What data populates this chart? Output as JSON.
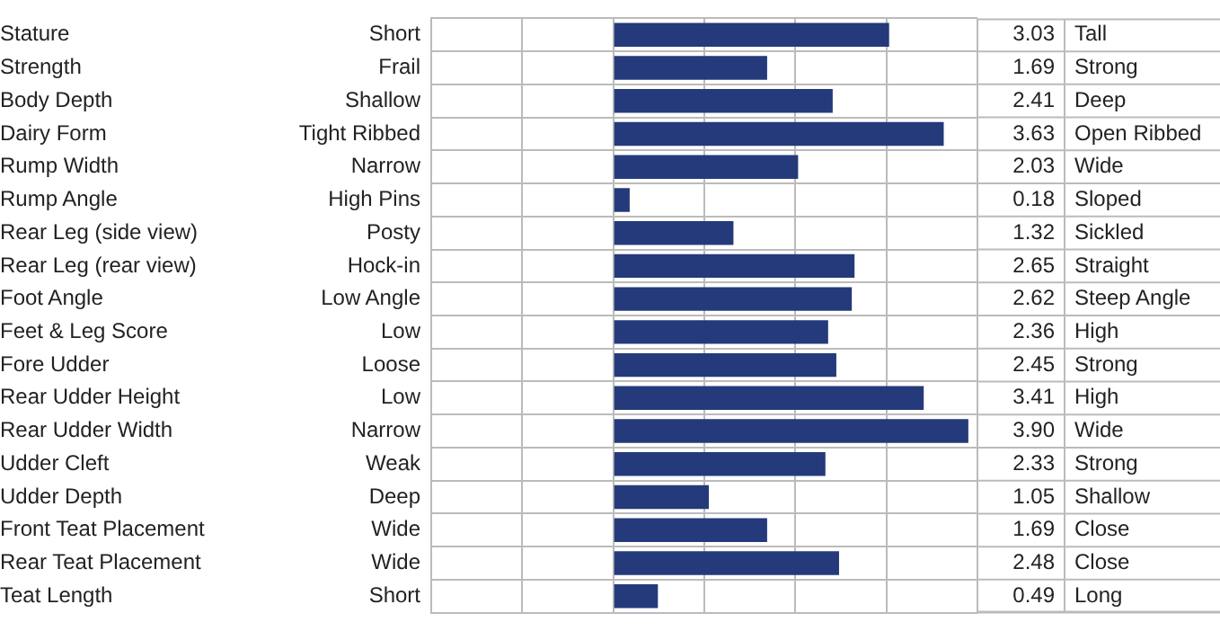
{
  "chart_data": {
    "type": "bar",
    "orientation": "horizontal",
    "color": "#253a7a",
    "grid": true,
    "legend": false,
    "tick_labels": "y",
    "categories": [
      "Stature",
      "Strength",
      "Body Depth",
      "Dairy Form",
      "Rump Width",
      "Rump Angle",
      "Rear Leg (side view)",
      "Rear Leg (rear view)",
      "Foot Angle",
      "Feet & Leg Score",
      "Fore Udder",
      "Rear Udder Height",
      "Rear Udder Width",
      "Udder Cleft",
      "Udder Depth",
      "Front Teat Placement",
      "Rear Teat Placement",
      "Teat Length"
    ],
    "values": [
      3.03,
      1.69,
      2.41,
      3.63,
      2.03,
      0.18,
      1.32,
      2.65,
      2.62,
      2.36,
      2.45,
      3.41,
      3.9,
      2.33,
      1.05,
      1.69,
      2.48,
      0.49
    ],
    "value_labels": [
      "3.03",
      "1.69",
      "2.41",
      "3.63",
      "2.03",
      "0.18",
      "1.32",
      "2.65",
      "2.62",
      "2.36",
      "2.45",
      "3.41",
      "3.90",
      "2.33",
      "1.05",
      "1.69",
      "2.48",
      "0.49"
    ],
    "xlim": [
      -2,
      4
    ],
    "xticks": [
      {
        "value": -2,
        "label": null
      },
      {
        "value": -1,
        "label": null
      },
      {
        "value": 0,
        "label": null
      },
      {
        "value": 1,
        "label": null
      },
      {
        "value": 2,
        "label": null
      },
      {
        "value": 3,
        "label": null
      },
      {
        "value": 4,
        "label": null
      }
    ],
    "annotations": [
      "Short",
      "Tall",
      "Frail",
      "Strong",
      "Shallow",
      "Deep",
      "Tight Ribbed",
      "Open Ribbed",
      "Narrow",
      "Wide",
      "High Pins",
      "Sloped",
      "Posty",
      "Sickled",
      "Hock-in",
      "Straight",
      "Low Angle",
      "Steep Angle",
      "Low",
      "High",
      "Loose",
      "Strong",
      "Low",
      "High",
      "Narrow",
      "Wide",
      "Weak",
      "Strong",
      "Deep",
      "Shallow",
      "Wide",
      "Close",
      "Wide",
      "Close",
      "Short",
      "Long"
    ]
  }
}
